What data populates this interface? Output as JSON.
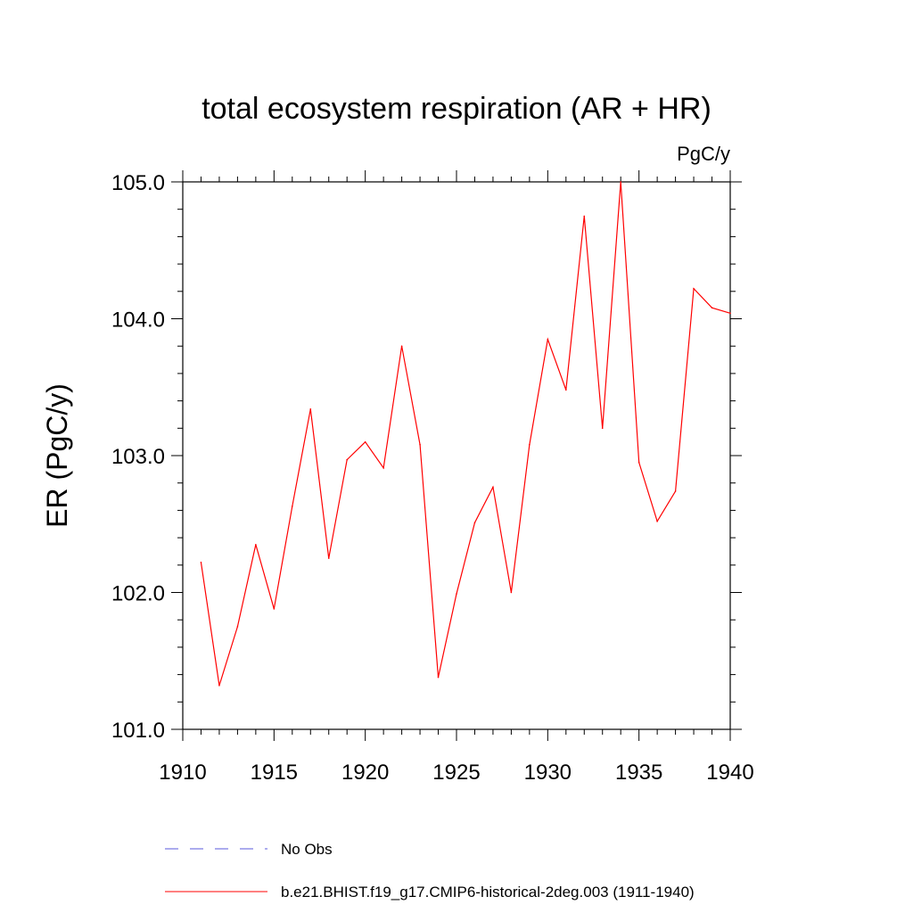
{
  "chart_data": {
    "type": "line",
    "title": "total ecosystem respiration (AR + HR)",
    "units": "PgC/y",
    "xlabel": "",
    "ylabel": "ER  (PgC/y)",
    "xlim": [
      1910,
      1940
    ],
    "ylim": [
      101.0,
      105.0
    ],
    "x_ticks": [
      1910,
      1915,
      1920,
      1925,
      1930,
      1935,
      1940
    ],
    "x_tick_labels": [
      "1910",
      "1915",
      "1920",
      "1925",
      "1930",
      "1935",
      "1940"
    ],
    "y_ticks": [
      101.0,
      102.0,
      103.0,
      104.0,
      105.0
    ],
    "y_tick_labels": [
      "101.0",
      "102.0",
      "103.0",
      "104.0",
      "105.0"
    ],
    "grid": false,
    "legend_position": "bottom",
    "legend": [
      {
        "label": "No Obs",
        "style": "dashed",
        "color": "#5a5adc"
      },
      {
        "label": "b.e21.BHIST.f19_g17.CMIP6-historical-2deg.003 (1911-1940)",
        "style": "solid",
        "color": "#ff0000"
      }
    ],
    "series": [
      {
        "name": "b.e21.BHIST.f19_g17.CMIP6-historical-2deg.003 (1911-1940)",
        "color": "#ff0000",
        "x": [
          1911,
          1912,
          1913,
          1914,
          1915,
          1916,
          1917,
          1918,
          1919,
          1920,
          1921,
          1922,
          1923,
          1924,
          1925,
          1926,
          1927,
          1928,
          1929,
          1930,
          1931,
          1932,
          1933,
          1934,
          1935,
          1936,
          1937,
          1938,
          1939,
          1940
        ],
        "y": [
          102.22,
          101.32,
          101.75,
          102.35,
          101.88,
          102.63,
          103.34,
          102.25,
          102.97,
          103.1,
          102.91,
          103.8,
          103.08,
          101.38,
          101.99,
          102.51,
          102.77,
          102.0,
          103.08,
          103.85,
          103.48,
          104.75,
          103.2,
          105.0,
          102.95,
          102.52,
          102.74,
          104.22,
          104.08,
          104.04
        ]
      }
    ]
  }
}
